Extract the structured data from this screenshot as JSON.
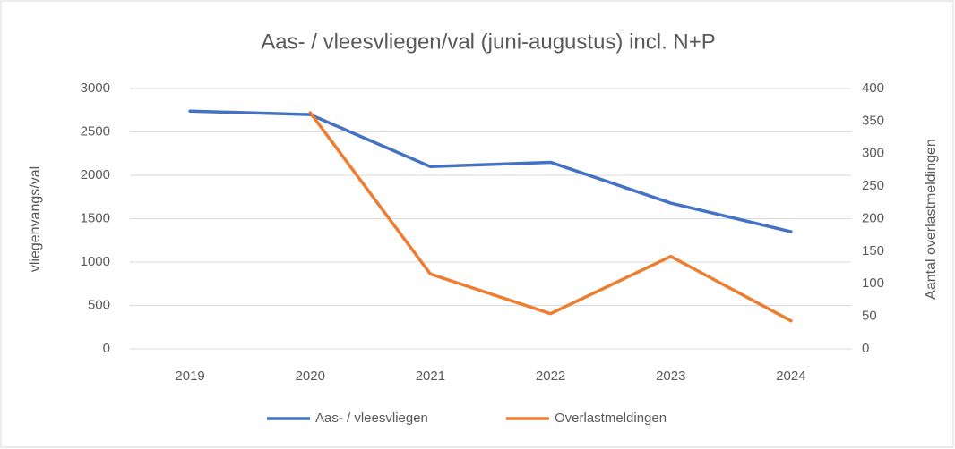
{
  "chart_data": {
    "type": "line",
    "title": "Aas- / vleesvliegen/val (juni-augustus) incl. N+P",
    "y_label": "vliegenvangs/val",
    "y2_label": "Aantal overlastmeldingen",
    "categories": [
      "2019",
      "2020",
      "2021",
      "2022",
      "2023",
      "2024"
    ],
    "series": [
      {
        "name": "Aas- / vleesvliegen",
        "color": "#4472c4",
        "values": [
          2740,
          2700,
          2100,
          2150,
          1680,
          1350
        ]
      },
      {
        "name": "Overlastmeldingen",
        "color": "#ed7d31",
        "axis": "y2",
        "values": [
          null,
          363,
          115,
          54,
          142,
          43
        ]
      }
    ],
    "ylim": [
      0,
      3000
    ],
    "yticks": [
      0,
      500,
      1000,
      1500,
      2000,
      2500,
      3000
    ],
    "y2lim": [
      0,
      400
    ],
    "y2ticks": [
      0,
      50,
      100,
      150,
      200,
      250,
      300,
      350,
      400
    ],
    "grid": true,
    "legend": "bottom"
  }
}
